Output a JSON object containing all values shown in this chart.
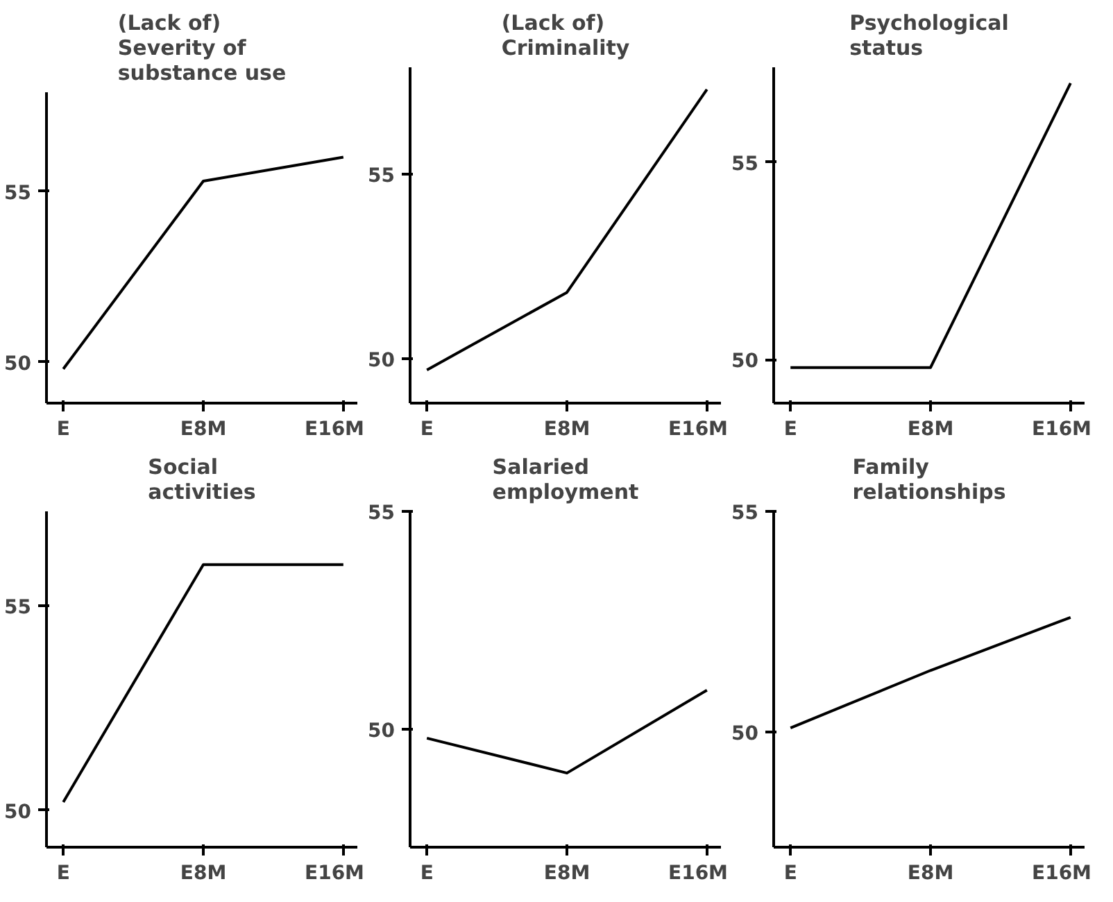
{
  "chart_data": [
    {
      "type": "line",
      "title": "(Lack of)\nSeverity of\nsubstance use",
      "categories": [
        "E",
        "E8M",
        "E16M"
      ],
      "series": [
        {
          "color": "#000000",
          "values": [
            49.8,
            55.3,
            56.0
          ]
        }
      ],
      "ylim": [
        48.8,
        57.9
      ],
      "yticks": [
        50,
        55
      ]
    },
    {
      "type": "line",
      "title": "(Lack of)\nCriminality",
      "categories": [
        "E",
        "E8M",
        "E16M"
      ],
      "series": [
        {
          "color": "#000000",
          "values": [
            49.7,
            51.8,
            57.3
          ]
        }
      ],
      "ylim": [
        48.8,
        57.9
      ],
      "yticks": [
        50,
        55
      ]
    },
    {
      "type": "line",
      "title": "Psychological\nstatus",
      "categories": [
        "E",
        "E8M",
        "E16M"
      ],
      "series": [
        {
          "color": "#000000",
          "values": [
            49.8,
            49.8,
            57.0
          ]
        }
      ],
      "ylim": [
        48.9,
        57.4
      ],
      "yticks": [
        50,
        55
      ]
    },
    {
      "type": "line",
      "title": "Social\nactivities",
      "categories": [
        "E",
        "E8M",
        "E16M"
      ],
      "series": [
        {
          "color": "#000000",
          "values": [
            50.2,
            56.0,
            56.0
          ]
        }
      ],
      "ylim": [
        49.1,
        57.3
      ],
      "yticks": [
        50,
        55
      ]
    },
    {
      "type": "line",
      "title": "Salaried\nemployment",
      "categories": [
        "E",
        "E8M",
        "E16M"
      ],
      "series": [
        {
          "color": "#000000",
          "values": [
            49.8,
            49.0,
            50.9
          ]
        }
      ],
      "ylim": [
        47.3,
        55.0
      ],
      "yticks": [
        50,
        55
      ]
    },
    {
      "type": "line",
      "title": "Family\nrelationships",
      "categories": [
        "E",
        "E8M",
        "E16M"
      ],
      "series": [
        {
          "color": "#000000",
          "values": [
            50.1,
            51.4,
            52.6
          ]
        }
      ],
      "ylim": [
        47.4,
        55.0
      ],
      "yticks": [
        50,
        55
      ]
    }
  ]
}
